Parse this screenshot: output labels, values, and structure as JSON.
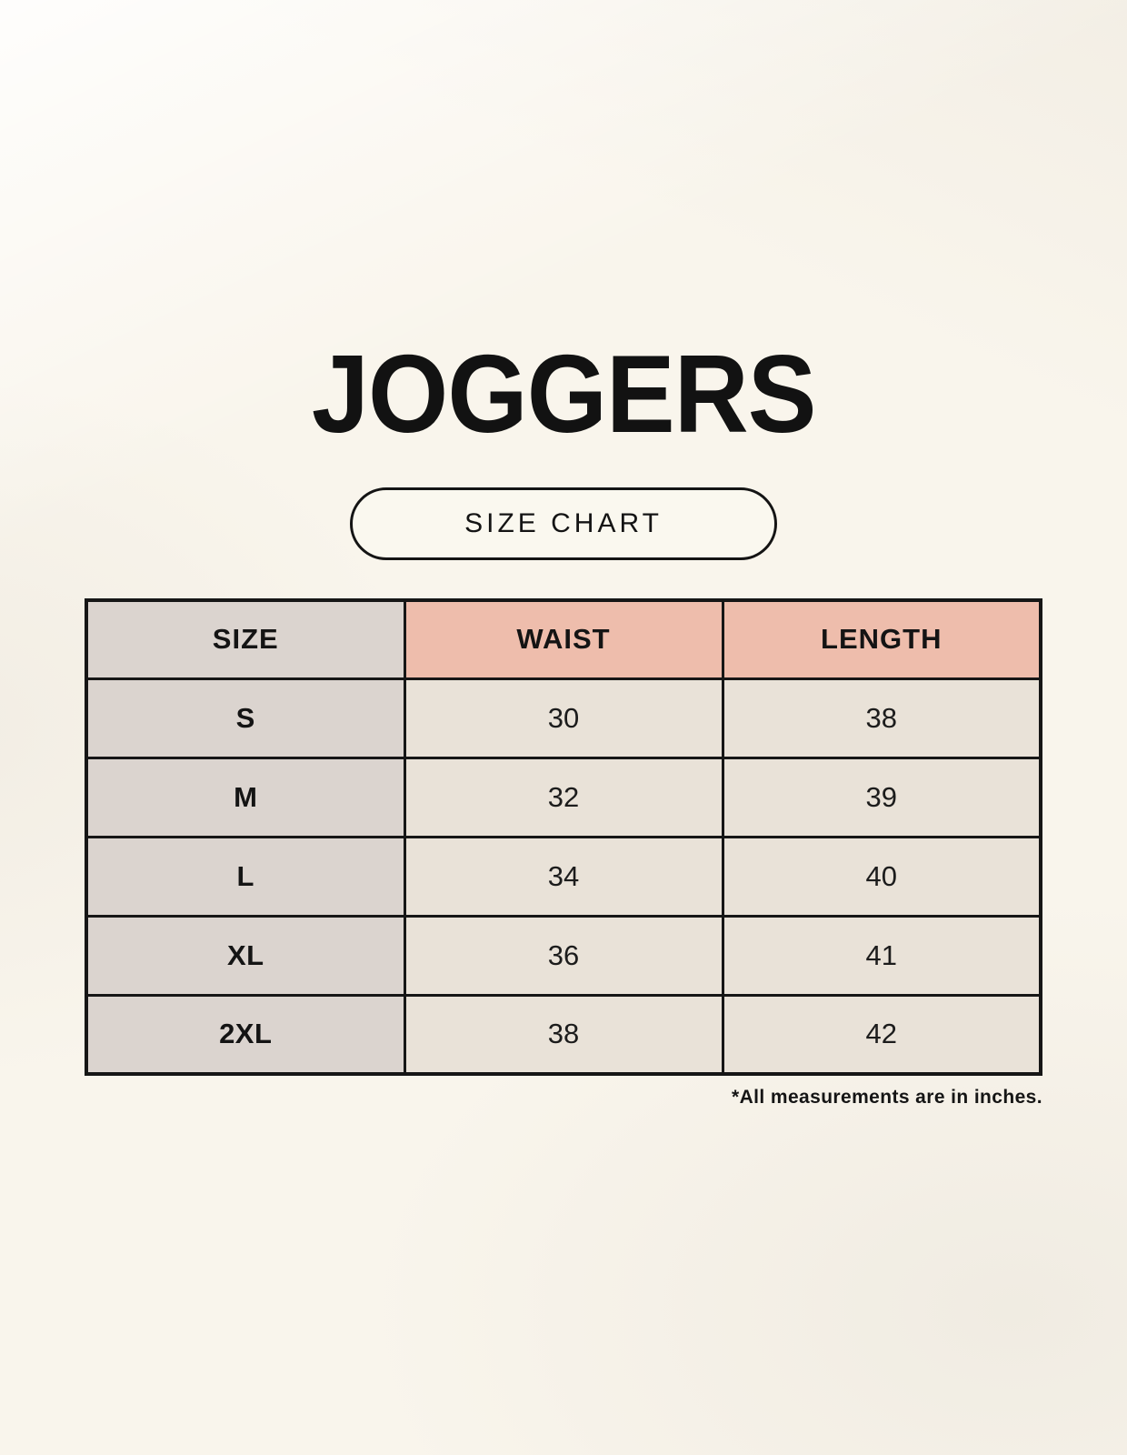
{
  "header": {
    "title": "JOGGERS",
    "size_chart_label": "SIZE CHART"
  },
  "table": {
    "columns": [
      "SIZE",
      "WAIST",
      "LENGTH"
    ],
    "rows": [
      {
        "size": "S",
        "waist": "30",
        "length": "38"
      },
      {
        "size": "M",
        "waist": "32",
        "length": "39"
      },
      {
        "size": "L",
        "waist": "34",
        "length": "40"
      },
      {
        "size": "XL",
        "waist": "36",
        "length": "41"
      },
      {
        "size": "2XL",
        "waist": "38",
        "length": "42"
      }
    ],
    "footnote": "*All measurements are in inches."
  },
  "colors": {
    "background": "#f9f5ec",
    "size_column_bg": "#dbd4cf",
    "measure_header_bg": "#eebdac",
    "data_cell_bg": "#e9e2d8",
    "border": "#161616",
    "text": "#141414"
  },
  "chart_data": {
    "type": "table",
    "title": "JOGGERS",
    "subtitle": "SIZE CHART",
    "columns": [
      "SIZE",
      "WAIST",
      "LENGTH"
    ],
    "rows": [
      [
        "S",
        30,
        38
      ],
      [
        "M",
        32,
        39
      ],
      [
        "L",
        34,
        40
      ],
      [
        "XL",
        36,
        41
      ],
      [
        "2XL",
        38,
        42
      ]
    ],
    "units": "inches"
  }
}
